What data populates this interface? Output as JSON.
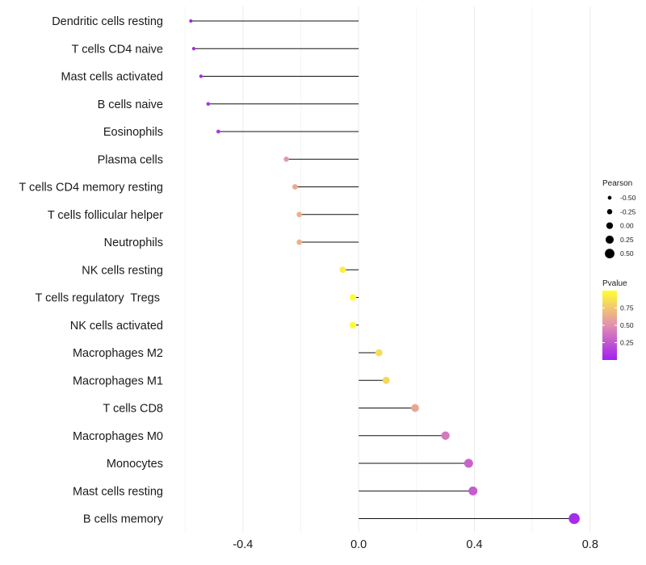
{
  "chart_data": {
    "type": "lollipop",
    "categories": [
      "Dendritic cells resting",
      "T cells CD4 naive",
      "Mast cells activated",
      "B cells naive",
      "Eosinophils",
      "Plasma cells",
      "T cells CD4 memory resting",
      "T cells follicular helper",
      "Neutrophils",
      "NK cells resting",
      "T cells regulatory  Tregs ",
      "NK cells activated",
      "Macrophages M2",
      "Macrophages M1",
      "T cells CD8",
      "Macrophages M0",
      "Monocytes",
      "Mast cells resting",
      "B cells memory"
    ],
    "values": [
      -0.58,
      -0.57,
      -0.545,
      -0.52,
      -0.485,
      -0.25,
      -0.22,
      -0.205,
      -0.205,
      -0.055,
      -0.02,
      -0.02,
      0.07,
      0.095,
      0.195,
      0.3,
      0.38,
      0.395,
      0.745
    ],
    "pvalues": [
      0.02,
      0.03,
      0.05,
      0.08,
      0.12,
      0.55,
      0.62,
      0.65,
      0.65,
      0.92,
      0.99,
      0.99,
      0.85,
      0.82,
      0.6,
      0.4,
      0.3,
      0.28,
      0.05
    ],
    "xlim": [
      -0.62,
      0.82
    ],
    "xticks": [
      -0.4,
      0.0,
      0.4,
      0.8
    ],
    "xtick_labels": [
      "-0.4",
      "0.0",
      "0.4",
      "0.8"
    ],
    "legend_size": {
      "title": "Pearson",
      "values": [
        -0.5,
        -0.25,
        0.0,
        0.25,
        0.5
      ],
      "labels": [
        "-0.50",
        "-0.25",
        "0.00",
        "0.25",
        "0.50"
      ]
    },
    "legend_color": {
      "title": "Pvalue",
      "ticks": [
        0.75,
        0.5,
        0.25
      ],
      "tick_labels": [
        "0.75",
        "0.50",
        "0.25"
      ],
      "range": [
        0.0,
        1.0
      ],
      "low_color": "#a020f0",
      "mid_color": "#e28fb0",
      "high_color": "#ffff30"
    },
    "grid": true,
    "legend_position": "right"
  }
}
